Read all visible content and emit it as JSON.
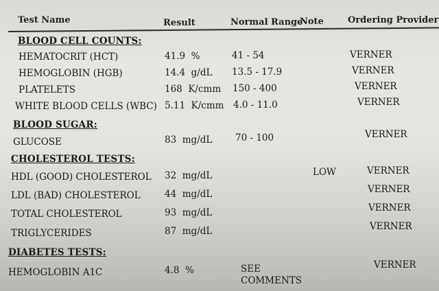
{
  "header": {
    "test_name": "Test Name",
    "result": "Result",
    "normal_range": "Normal Range",
    "note": "Note",
    "ordering_provider": "Ordering Provider"
  },
  "sections": [
    {
      "title": "BLOOD CELL COUNTS:",
      "rows": [
        {
          "name": "HEMATOCRIT (HCT)",
          "result": "41.9  %",
          "range": "41 - 54",
          "note": "",
          "provider": "VERNER"
        },
        {
          "name": "HEMOGLOBIN (HGB)",
          "result": "14.4  g/dL",
          "range": "13.5 - 17.9",
          "note": "",
          "provider": "VERNER"
        },
        {
          "name": "PLATELETS",
          "result": "168  K/cmm",
          "range": "150 - 400",
          "note": "",
          "provider": "VERNER"
        },
        {
          "name": "WHITE BLOOD CELLS (WBC)",
          "result": "5.11  K/cmm",
          "range": "4.0 - 11.0",
          "note": "",
          "provider": "VERNER"
        }
      ]
    },
    {
      "title": "BLOOD SUGAR:",
      "rows": [
        {
          "name": "GLUCOSE",
          "result": "83  mg/dL",
          "range": "70 - 100",
          "note": "",
          "provider": "VERNER"
        }
      ]
    },
    {
      "title": "CHOLESTEROL TESTS:",
      "rows": [
        {
          "name": "HDL (GOOD) CHOLESTEROL",
          "result": "32  mg/dL",
          "range": "",
          "note": "LOW",
          "provider": "VERNER"
        },
        {
          "name": "LDL (BAD) CHOLESTEROL",
          "result": "44  mg/dL",
          "range": "",
          "note": "",
          "provider": "VERNER"
        },
        {
          "name": "TOTAL CHOLESTEROL",
          "result": "93  mg/dL",
          "range": "",
          "note": "",
          "provider": "VERNER"
        },
        {
          "name": "TRIGLYCERIDES",
          "result": "87  mg/dL",
          "range": "",
          "note": "",
          "provider": "VERNER"
        }
      ]
    },
    {
      "title": "DIABETES TESTS:",
      "rows": [
        {
          "name": "HEMOGLOBIN A1C",
          "result": "4.8  %",
          "range": "SEE COMMENTS",
          "note": "",
          "provider": "VERNER"
        }
      ]
    }
  ]
}
